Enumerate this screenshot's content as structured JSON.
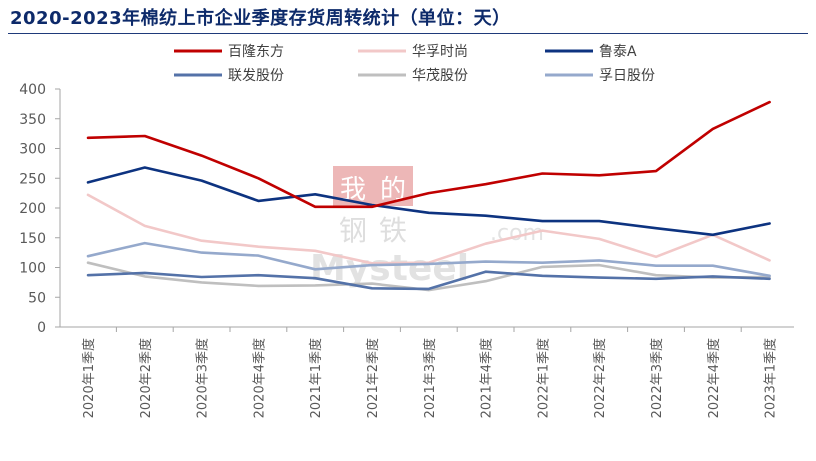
{
  "chart_data": {
    "type": "line",
    "title": "2020-2023年棉纺上市企业季度存货周转统计（单位：天）",
    "xlabel": "",
    "ylabel": "",
    "ylim": [
      0,
      400
    ],
    "yticks": [
      0,
      50,
      100,
      150,
      200,
      250,
      300,
      350,
      400
    ],
    "grid": false,
    "legend_position": "top",
    "categories": [
      "2020年1季度",
      "2020年2季度",
      "2020年3季度",
      "2020年4季度",
      "2021年1季度",
      "2021年2季度",
      "2021年3季度",
      "2021年4季度",
      "2022年1季度",
      "2022年2季度",
      "2022年3季度",
      "2022年4季度",
      "2023年1季度"
    ],
    "series": [
      {
        "name": "百隆东方",
        "color": "#c00000",
        "values": [
          318,
          321,
          288,
          250,
          202,
          202,
          225,
          240,
          258,
          255,
          262,
          333,
          378
        ]
      },
      {
        "name": "华孚时尚",
        "color": "#f2c8c8",
        "values": [
          222,
          170,
          145,
          135,
          128,
          107,
          108,
          140,
          162,
          148,
          118,
          155,
          112
        ]
      },
      {
        "name": "鲁泰A",
        "color": "#0d3380",
        "values": [
          243,
          268,
          246,
          212,
          223,
          205,
          192,
          187,
          178,
          178,
          166,
          155,
          174
        ]
      },
      {
        "name": "联发股份",
        "color": "#5472a8",
        "values": [
          87,
          91,
          84,
          87,
          82,
          65,
          64,
          93,
          86,
          83,
          81,
          85,
          81
        ]
      },
      {
        "name": "华茂股份",
        "color": "#bfbfbf",
        "values": [
          108,
          85,
          75,
          69,
          70,
          73,
          62,
          77,
          101,
          104,
          87,
          83,
          84
        ]
      },
      {
        "name": "孚日股份",
        "color": "#95a9cc",
        "values": [
          119,
          141,
          125,
          120,
          97,
          104,
          106,
          110,
          108,
          112,
          103,
          103,
          86
        ]
      }
    ]
  },
  "watermark": {
    "brand_cn": "我的钢铁",
    "brand_en": "Mysteel",
    "domain": ".com"
  }
}
